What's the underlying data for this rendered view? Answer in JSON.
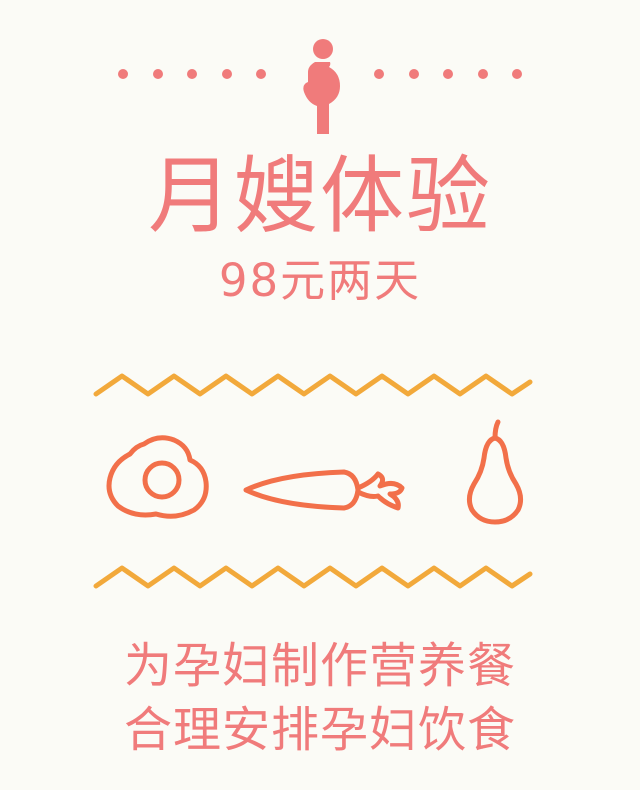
{
  "colors": {
    "background": "#fbfbf6",
    "accent_pink": "#f07b7b",
    "icon_orange": "#f2704a",
    "zigzag_yellow": "#f2a93b"
  },
  "header": {
    "icon": "pregnant-woman-icon",
    "title": "月嫂体验",
    "subtitle": "98元两天"
  },
  "food_icons": [
    "fried-egg-icon",
    "carrot-icon",
    "pear-icon"
  ],
  "description": {
    "line1": "为孕妇制作营养餐",
    "line2": "合理安排孕妇饮食"
  }
}
